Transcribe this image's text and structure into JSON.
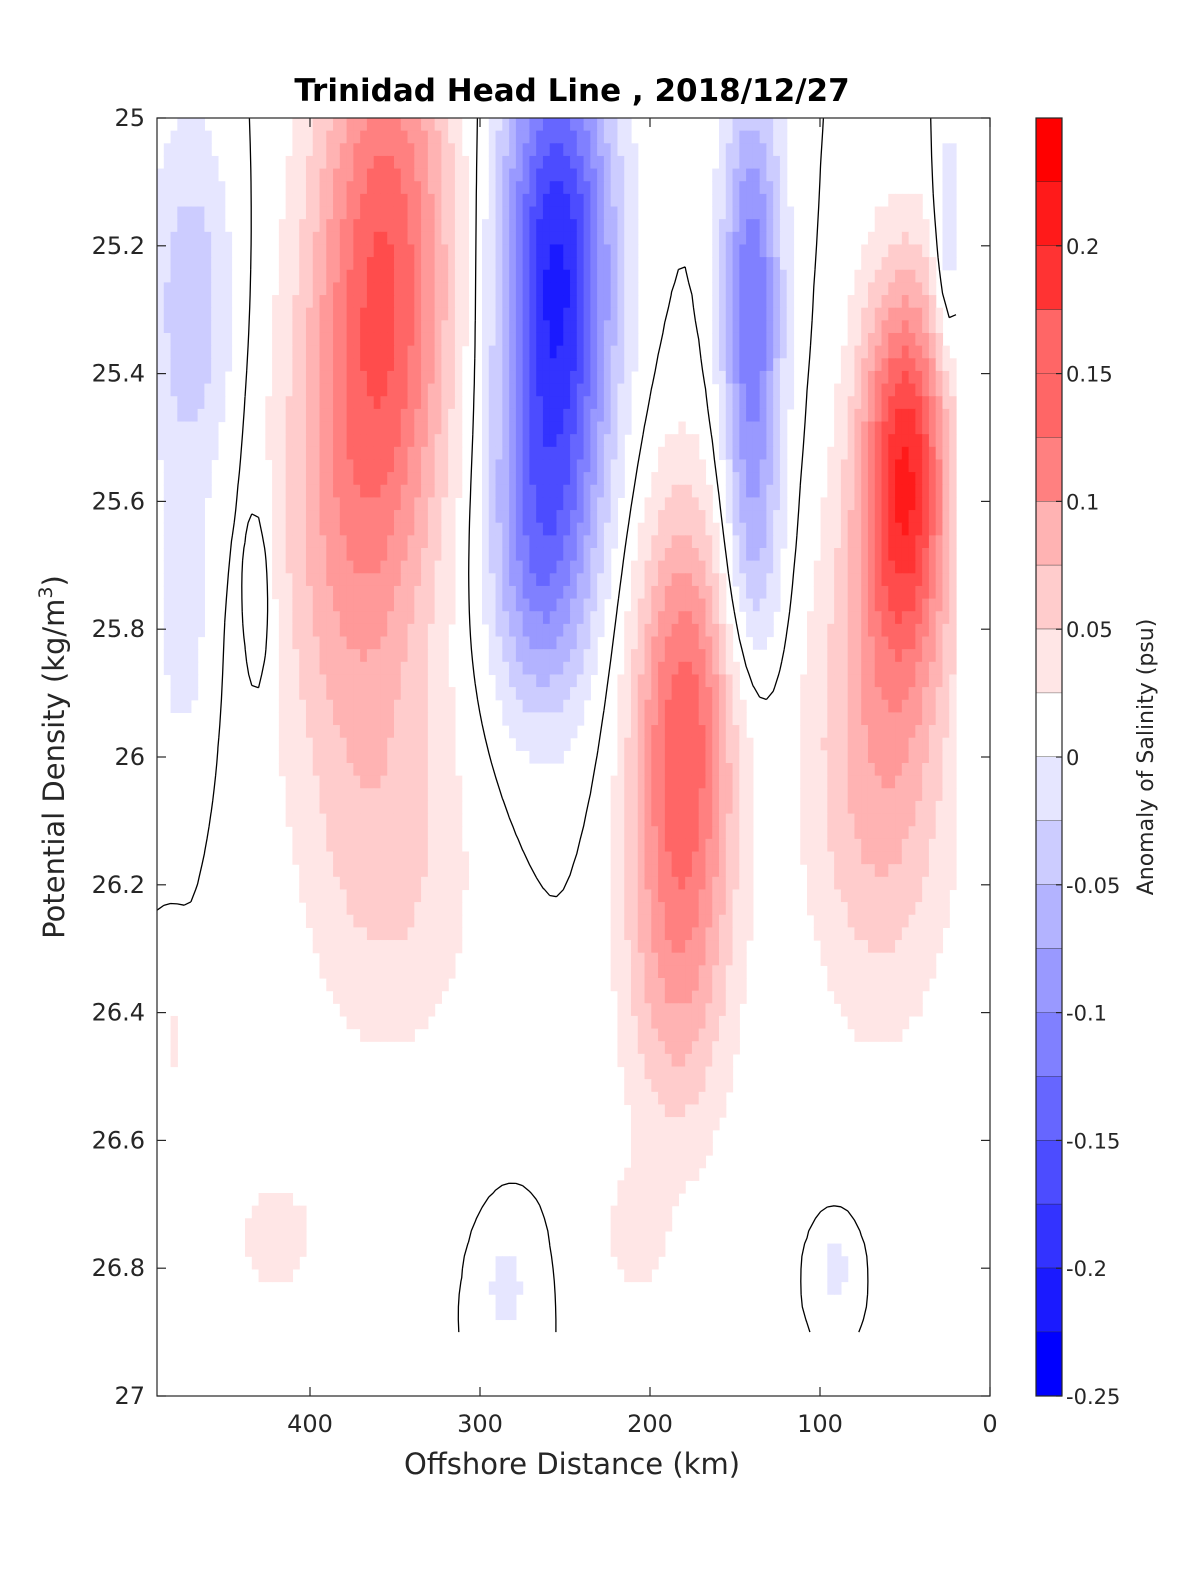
{
  "chart_data": {
    "type": "heatmap",
    "title": "Trinidad Head Line , 2018/12/27",
    "xlabel": "Offshore Distance (km)",
    "ylabel_main": "Potential Density (kg/m",
    "ylabel_sup": "3",
    "ylabel_close": ")",
    "colorbar_label": "Anomaly of Salinity (psu)",
    "xlim": [
      490,
      0
    ],
    "ylim": [
      25,
      27
    ],
    "x_ticks": [
      400,
      300,
      200,
      100,
      0
    ],
    "x_tick_labels": [
      "400",
      "300",
      "200",
      "100",
      "0"
    ],
    "y_ticks": [
      25,
      25.2,
      25.4,
      25.6,
      25.8,
      26,
      26.2,
      26.4,
      26.6,
      26.8,
      27
    ],
    "y_tick_labels": [
      "25",
      "25.2",
      "25.4",
      "25.6",
      "25.8",
      "26",
      "26.2",
      "26.4",
      "26.6",
      "26.8",
      "27"
    ],
    "clim": [
      -0.25,
      0.25
    ],
    "contour_step": 0.025,
    "colorbar_ticks": [
      0.2,
      0.15,
      0.1,
      0.05,
      0,
      -0.05,
      -0.1,
      -0.15,
      -0.2,
      -0.25
    ],
    "colorbar_tick_labels": [
      "0.2",
      "0.15",
      "0.1",
      "0.05",
      "0",
      "-0.05",
      "-0.1",
      "-0.15",
      "-0.2",
      "-0.25"
    ],
    "colors": {
      "positive": "#ff0000",
      "negative": "#0000ff",
      "neutral": "#ffffff",
      "zero_contour": "#000000"
    },
    "data_extent": {
      "x": [
        490,
        20
      ],
      "y": [
        25,
        26.9
      ]
    },
    "features": [
      {
        "x": 355,
        "y": 25.2,
        "value": 0.15,
        "sx": 40,
        "sy": 0.45
      },
      {
        "x": 375,
        "y": 25.65,
        "value": 0.09,
        "sx": 45,
        "sy": 0.45
      },
      {
        "x": 350,
        "y": 26.2,
        "value": 0.045,
        "sx": 50,
        "sy": 0.3
      },
      {
        "x": 255,
        "y": 25.25,
        "value": -0.23,
        "sx": 33,
        "sy": 0.4
      },
      {
        "x": 265,
        "y": 25.7,
        "value": -0.1,
        "sx": 30,
        "sy": 0.25
      },
      {
        "x": 140,
        "y": 25.3,
        "value": -0.15,
        "sx": 18,
        "sy": 0.35
      },
      {
        "x": 140,
        "y": 25.7,
        "value": -0.05,
        "sx": 18,
        "sy": 0.2
      },
      {
        "x": 180,
        "y": 25.95,
        "value": 0.16,
        "sx": 30,
        "sy": 0.35
      },
      {
        "x": 185,
        "y": 26.35,
        "value": 0.07,
        "sx": 32,
        "sy": 0.3
      },
      {
        "x": 50,
        "y": 25.55,
        "value": 0.21,
        "sx": 26,
        "sy": 0.3
      },
      {
        "x": 65,
        "y": 26.0,
        "value": 0.09,
        "sx": 42,
        "sy": 0.4
      },
      {
        "x": 470,
        "y": 25.3,
        "value": -0.07,
        "sx": 25,
        "sy": 0.3
      },
      {
        "x": 475,
        "y": 25.8,
        "value": -0.04,
        "sx": 15,
        "sy": 0.2
      },
      {
        "x": 430,
        "y": 25.75,
        "value": -0.04,
        "sx": 8,
        "sy": 0.15
      },
      {
        "x": 25,
        "y": 25.2,
        "value": -0.06,
        "sx": 8,
        "sy": 0.2
      },
      {
        "x": 420,
        "y": 26.75,
        "value": 0.035,
        "sx": 30,
        "sy": 0.12
      },
      {
        "x": 480,
        "y": 26.45,
        "value": 0.03,
        "sx": 8,
        "sy": 0.1
      },
      {
        "x": 285,
        "y": 26.83,
        "value": -0.04,
        "sx": 12,
        "sy": 0.08
      },
      {
        "x": 90,
        "y": 26.8,
        "value": -0.04,
        "sx": 10,
        "sy": 0.06
      },
      {
        "x": 345,
        "y": 26.95,
        "value": 0.02,
        "sx": 12,
        "sy": 0.05
      },
      {
        "x": 210,
        "y": 26.75,
        "value": 0.035,
        "sx": 20,
        "sy": 0.1
      }
    ]
  }
}
